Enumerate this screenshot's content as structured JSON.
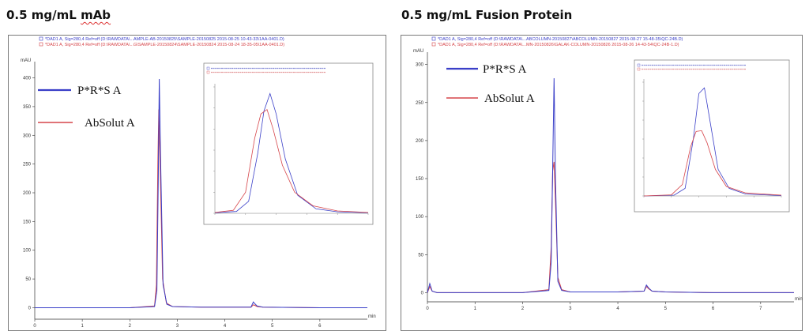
{
  "colors": {
    "blue": "#3a3fc8",
    "red": "#d6454a",
    "frame": "#7a7a7a"
  },
  "panels": [
    {
      "title_prefix": "0.5 mg/mL ",
      "title_underlined": "mAb",
      "header_lines": [
        "*DAD1 A, Sig=280,4 Ref=off (D:\\RAWDATA\\...AMPLE-AB-20150825\\SAMPLE-20150825 2015-08-25 10-43-33\\1AA-0401.D)",
        "*DAD1 A, Sig=280,4 Ref=off (D:\\RAWDATA\\...G\\SAMPLE-20150824\\SAMPLE-20150824 2015-08-24 18-35-05\\1AA-0401.D)"
      ],
      "legend": [
        "P*R*S  A",
        "AbSolut A"
      ]
    },
    {
      "title_prefix": "0.5 mg/mL Fusion Protein",
      "title_underlined": "",
      "header_lines": [
        "*DAD1 A, Sig=280,4 Ref=off (D:\\RAWDATA\\...ABCOLUMN-20150827\\ABCOLUMN-20150827 2015-08-27 15-48-35\\QC-24B.D)",
        "*DAD1 A, Sig=280,4 Ref=off (D:\\RAWDATA\\...MN-20150826\\GALAK-COLUMN-20150826 2015-08-26 14-43-54\\QC-24B-1.D)"
      ],
      "legend": [
        "P*R*S  A",
        "AbSolut A"
      ]
    }
  ],
  "chart_data": [
    {
      "type": "line",
      "yunit": "mAU",
      "xunit": "min",
      "xlim": [
        0,
        7
      ],
      "ylim": [
        -20,
        420
      ],
      "xticks": [
        0,
        1,
        2,
        3,
        4,
        5,
        6
      ],
      "yticks": [
        0,
        50,
        100,
        150,
        200,
        250,
        300,
        350,
        400
      ],
      "series": [
        {
          "name": "P*R*S  A",
          "color": "#3a3fc8",
          "x": [
            0,
            1,
            2,
            2.52,
            2.57,
            2.6,
            2.62,
            2.65,
            2.7,
            2.78,
            2.9,
            3.5,
            4.55,
            4.6,
            4.63,
            4.68,
            4.8,
            6,
            7
          ],
          "y": [
            0,
            0,
            0,
            2,
            30,
            230,
            398,
            250,
            40,
            6,
            2,
            1,
            1,
            10,
            7,
            3,
            1,
            0,
            0
          ]
        },
        {
          "name": "AbSolut A",
          "color": "#d6454a",
          "x": [
            0,
            1,
            2,
            2.52,
            2.56,
            2.59,
            2.61,
            2.64,
            2.69,
            2.77,
            2.9,
            3.5,
            4.55,
            4.6,
            4.63,
            4.68,
            4.8,
            6,
            7
          ],
          "y": [
            0,
            0,
            0,
            3,
            40,
            250,
            345,
            240,
            50,
            8,
            2,
            1,
            1,
            5,
            4,
            2,
            1,
            0,
            0
          ]
        }
      ],
      "inset": {
        "xlim": [
          2.45,
          2.95
        ],
        "ylim": [
          0,
          420
        ],
        "series": [
          {
            "name": "P*R*S  A",
            "color": "#3a3fc8",
            "x": [
              2.45,
              2.52,
              2.56,
              2.59,
              2.61,
              2.63,
              2.65,
              2.68,
              2.72,
              2.78,
              2.85,
              2.95
            ],
            "y": [
              2,
              6,
              40,
              200,
              340,
              398,
              330,
              180,
              60,
              15,
              5,
              2
            ]
          },
          {
            "name": "AbSolut A",
            "color": "#d6454a",
            "x": [
              2.45,
              2.51,
              2.55,
              2.58,
              2.6,
              2.62,
              2.64,
              2.67,
              2.71,
              2.77,
              2.85,
              2.95
            ],
            "y": [
              3,
              10,
              70,
              250,
              330,
              345,
              280,
              160,
              70,
              25,
              8,
              3
            ]
          }
        ]
      }
    },
    {
      "type": "line",
      "yunit": "mAU",
      "xunit": "min",
      "xlim": [
        0,
        7.7
      ],
      "ylim": [
        -12,
        310
      ],
      "xticks": [
        0,
        1,
        2,
        3,
        4,
        5,
        6,
        7
      ],
      "yticks": [
        0,
        50,
        100,
        150,
        200,
        250,
        300
      ],
      "series": [
        {
          "name": "P*R*S  A",
          "color": "#3a3fc8",
          "x": [
            0,
            0.05,
            0.1,
            0.2,
            1,
            2,
            2.55,
            2.6,
            2.64,
            2.66,
            2.69,
            2.74,
            2.82,
            3,
            4,
            4.55,
            4.6,
            4.65,
            4.72,
            5,
            6,
            7.7
          ],
          "y": [
            0,
            12,
            2,
            0,
            0,
            0,
            3,
            40,
            200,
            282,
            150,
            15,
            3,
            1,
            1,
            2,
            10,
            6,
            2,
            1,
            0,
            0
          ]
        },
        {
          "name": "AbSolut A",
          "color": "#d6454a",
          "x": [
            0,
            0.05,
            0.1,
            0.2,
            1,
            2,
            2.55,
            2.6,
            2.63,
            2.66,
            2.69,
            2.74,
            2.82,
            3,
            4,
            4.55,
            4.6,
            4.65,
            4.72,
            5,
            6,
            7.7
          ],
          "y": [
            0,
            8,
            2,
            0,
            0,
            0,
            4,
            60,
            160,
            172,
            120,
            20,
            4,
            1,
            1,
            2,
            8,
            5,
            2,
            1,
            0,
            0
          ]
        }
      ],
      "inset": {
        "xlim": [
          2.45,
          2.95
        ],
        "ylim": [
          0,
          300
        ],
        "series": [
          {
            "name": "P*R*S  A",
            "color": "#3a3fc8",
            "x": [
              2.45,
              2.56,
              2.6,
              2.63,
              2.65,
              2.67,
              2.69,
              2.72,
              2.76,
              2.82,
              2.95
            ],
            "y": [
              0,
              2,
              20,
              150,
              270,
              285,
              200,
              70,
              20,
              5,
              1
            ]
          },
          {
            "name": "AbSolut A",
            "color": "#d6454a",
            "x": [
              2.45,
              2.55,
              2.59,
              2.62,
              2.64,
              2.66,
              2.68,
              2.71,
              2.75,
              2.82,
              2.95
            ],
            "y": [
              0,
              3,
              30,
              130,
              170,
              172,
              140,
              70,
              25,
              8,
              2
            ]
          }
        ]
      }
    }
  ]
}
